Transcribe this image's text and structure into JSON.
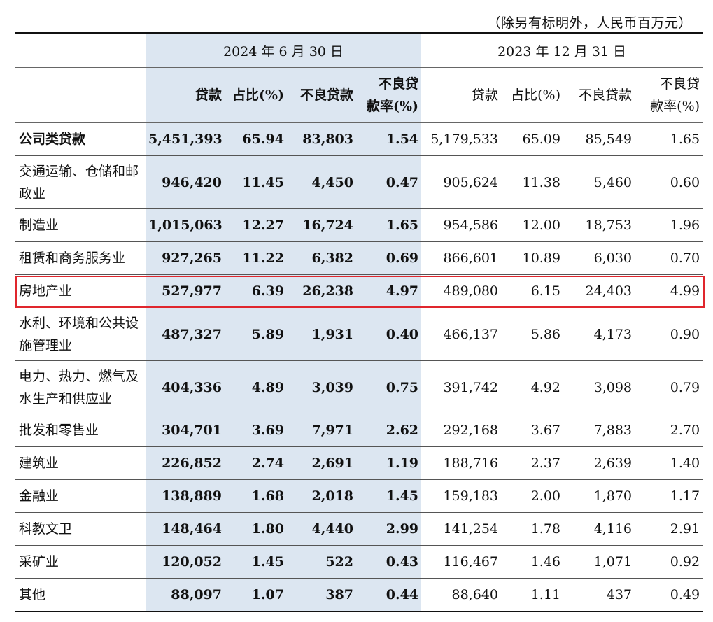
{
  "note": "（除另有标明外，人民币百万元）",
  "periods": {
    "current": "2024 年 6 月 30 日",
    "prior": "2023 年 12 月 31 日"
  },
  "columns": {
    "current": [
      "贷款",
      "占比(%)",
      "不良贷款",
      "不良贷款率(%)"
    ],
    "prior": [
      "贷款",
      "占比(%)",
      "不良贷款",
      "不良贷款率(%)"
    ]
  },
  "col_label_parts": {
    "cur_loan": "贷款",
    "cur_share": "占比(%)",
    "cur_npl": "不良贷款",
    "cur_rate_1": "不良贷",
    "cur_rate_2": "款率(%)",
    "pri_loan": "贷款",
    "pri_share": "占比(%)",
    "pri_npl": "不良贷款",
    "pri_rate_1": "不良贷",
    "pri_rate_2": "款率(%)"
  },
  "rows": [
    {
      "label": "公司类贷款",
      "c": [
        "5,451,393",
        "65.94",
        "83,803",
        "1.54"
      ],
      "p": [
        "5,179,533",
        "65.09",
        "85,549",
        "1.65"
      ],
      "bold": true
    },
    {
      "label": "交通运输、仓储和邮政业",
      "c": [
        "946,420",
        "11.45",
        "4,450",
        "0.47"
      ],
      "p": [
        "905,624",
        "11.38",
        "5,460",
        "0.60"
      ]
    },
    {
      "label": "制造业",
      "c": [
        "1,015,063",
        "12.27",
        "16,724",
        "1.65"
      ],
      "p": [
        "954,586",
        "12.00",
        "18,753",
        "1.96"
      ]
    },
    {
      "label": "租赁和商务服务业",
      "c": [
        "927,265",
        "11.22",
        "6,382",
        "0.69"
      ],
      "p": [
        "866,601",
        "10.89",
        "6,030",
        "0.70"
      ]
    },
    {
      "label": "房地产业",
      "c": [
        "527,977",
        "6.39",
        "26,238",
        "4.97"
      ],
      "p": [
        "489,080",
        "6.15",
        "24,403",
        "4.99"
      ],
      "highlighted": true
    },
    {
      "label": "水利、环境和公共设施管理业",
      "c": [
        "487,327",
        "5.89",
        "1,931",
        "0.40"
      ],
      "p": [
        "466,137",
        "5.86",
        "4,173",
        "0.90"
      ]
    },
    {
      "label": "电力、热力、燃气及水生产和供应业",
      "c": [
        "404,336",
        "4.89",
        "3,039",
        "0.75"
      ],
      "p": [
        "391,742",
        "4.92",
        "3,098",
        "0.79"
      ]
    },
    {
      "label": "批发和零售业",
      "c": [
        "304,701",
        "3.69",
        "7,971",
        "2.62"
      ],
      "p": [
        "292,168",
        "3.67",
        "7,883",
        "2.70"
      ]
    },
    {
      "label": "建筑业",
      "c": [
        "226,852",
        "2.74",
        "2,691",
        "1.19"
      ],
      "p": [
        "188,716",
        "2.37",
        "2,639",
        "1.40"
      ]
    },
    {
      "label": "金融业",
      "c": [
        "138,889",
        "1.68",
        "2,018",
        "1.45"
      ],
      "p": [
        "159,183",
        "2.00",
        "1,870",
        "1.17"
      ]
    },
    {
      "label": "科教文卫",
      "c": [
        "148,464",
        "1.80",
        "4,440",
        "2.99"
      ],
      "p": [
        "141,254",
        "1.78",
        "4,116",
        "2.91"
      ]
    },
    {
      "label": "采矿业",
      "c": [
        "120,052",
        "1.45",
        "522",
        "0.43"
      ],
      "p": [
        "116,467",
        "1.46",
        "1,071",
        "0.92"
      ]
    },
    {
      "label": "其他",
      "c": [
        "88,097",
        "1.07",
        "387",
        "0.44"
      ],
      "p": [
        "88,640",
        "1.11",
        "437",
        "0.49"
      ]
    }
  ],
  "colors": {
    "shade": "#dce6f1",
    "highlight_border": "#e0262d"
  }
}
